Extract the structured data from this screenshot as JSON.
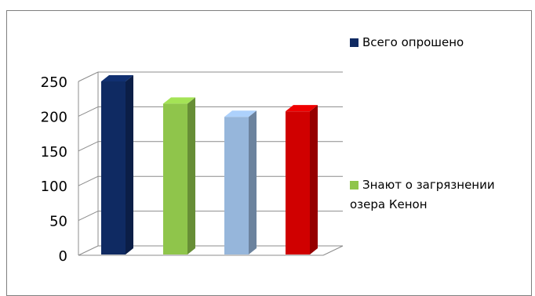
{
  "chart_data": {
    "type": "bar",
    "categories": [
      "",
      "",
      "",
      ""
    ],
    "series": [
      {
        "name": "Всего опрошено",
        "values": [
          250,
          null,
          null,
          null
        ],
        "color": "#0f2a62"
      },
      {
        "name": "Знают о загрязнении озера Кенон",
        "values": [
          null,
          218,
          199,
          207
        ],
        "color": "#8fc54b"
      }
    ],
    "bar_colors": [
      "#0f2a62",
      "#8fc54b",
      "#96b6db",
      "#d00000"
    ],
    "values": [
      250,
      218,
      199,
      207
    ],
    "yticks": [
      0,
      50,
      100,
      150,
      200,
      250
    ],
    "ylim": [
      0,
      250
    ],
    "grid": true,
    "legend_position": "right",
    "legend": [
      {
        "label": "Всего опрошено",
        "color": "#0f2a62"
      },
      {
        "label": "Знают о загрязнении озера Кенон",
        "color": "#8fc54b"
      }
    ]
  }
}
